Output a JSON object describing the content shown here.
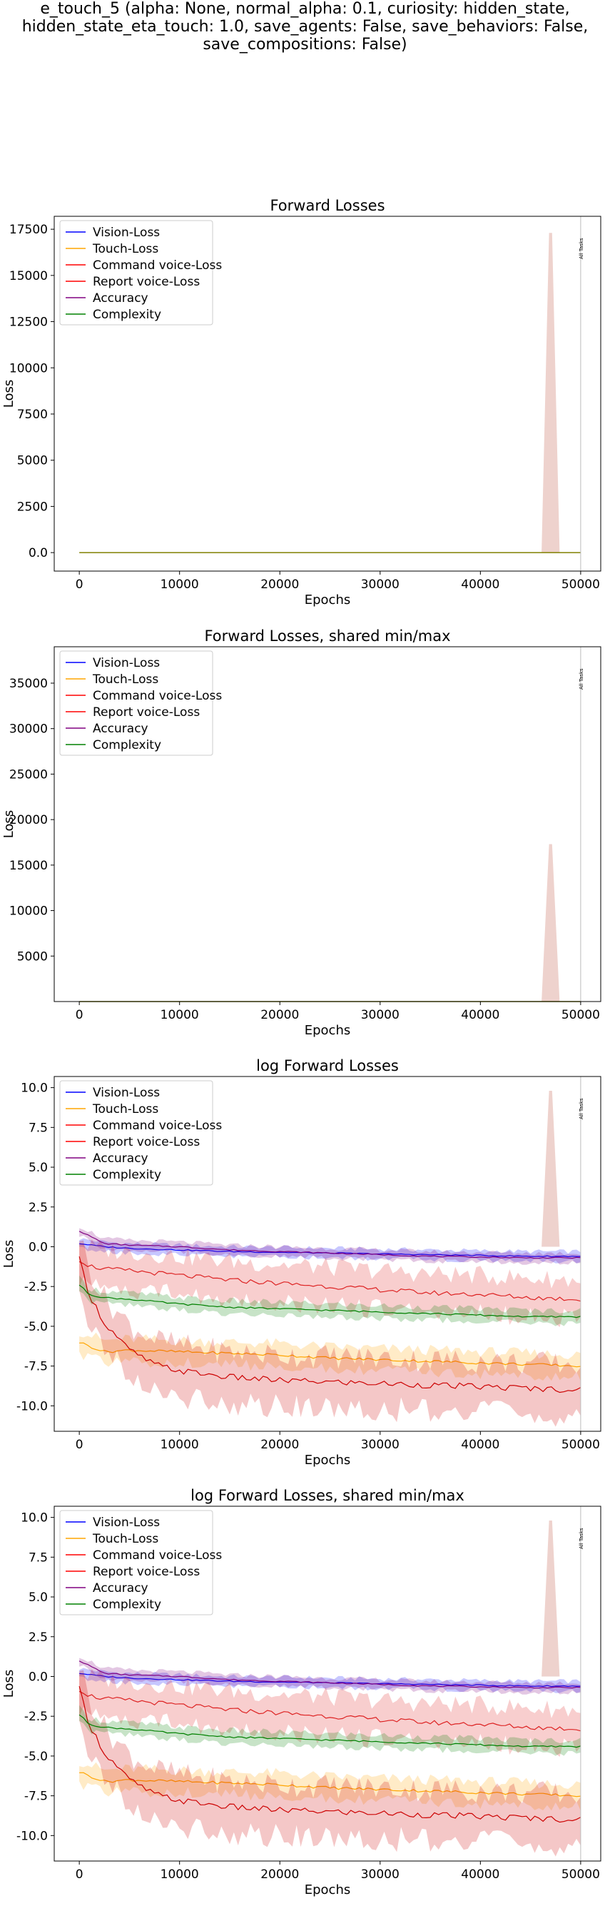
{
  "figure_title": "e_touch_5 (alpha: None, normal_alpha: 0.1, curiosity: hidden_state,\nhidden_state_eta_touch: 1.0, save_agents: False, save_behaviors: False,\nsave_compositions: False)",
  "legend": [
    {
      "name": "Vision-Loss",
      "color": "#0000ff"
    },
    {
      "name": "Touch-Loss",
      "color": "#ffa500"
    },
    {
      "name": "Command voice-Loss",
      "color": "#ff0000"
    },
    {
      "name": "Report voice-Loss",
      "color": "#ff0000"
    },
    {
      "name": "Accuracy",
      "color": "#800080"
    },
    {
      "name": "Complexity",
      "color": "#008000"
    }
  ],
  "marker_label": "All Tasks",
  "chart_data": [
    {
      "type": "line",
      "title": "Forward Losses",
      "xlabel": "Epochs",
      "ylabel": "Loss",
      "xlim": [
        -2500,
        52000
      ],
      "ylim": [
        -1000,
        18200
      ],
      "xticks": [
        0,
        10000,
        20000,
        30000,
        40000,
        50000
      ],
      "yticks": [
        0,
        2500,
        5000,
        7500,
        10000,
        12500,
        15000,
        17500
      ],
      "grid": false,
      "legend_position": "top-left",
      "vline_x": 50000,
      "spike": {
        "x": 47000,
        "y_max": 17300
      }
    },
    {
      "type": "line",
      "title": "Forward Losses, shared min/max",
      "xlabel": "Epochs",
      "ylabel": "Loss",
      "xlim": [
        -2500,
        52000
      ],
      "ylim": [
        0,
        39000
      ],
      "xticks": [
        0,
        10000,
        20000,
        30000,
        40000,
        50000
      ],
      "yticks": [
        5000,
        10000,
        15000,
        20000,
        25000,
        30000,
        35000
      ],
      "grid": false,
      "legend_position": "top-left",
      "vline_x": 50000,
      "spike": {
        "x": 47000,
        "y_max": 17300
      }
    },
    {
      "type": "line",
      "title": "log Forward Losses",
      "xlabel": "Epochs",
      "ylabel": "Loss",
      "xlim": [
        -2500,
        52000
      ],
      "ylim": [
        -11.6,
        10.7
      ],
      "xticks": [
        0,
        10000,
        20000,
        30000,
        40000,
        50000
      ],
      "yticks": [
        -10.0,
        -7.5,
        -5.0,
        -2.5,
        0.0,
        2.5,
        5.0,
        7.5,
        10.0
      ],
      "grid": false,
      "legend_position": "top-left",
      "vline_x": 50000,
      "spike": {
        "x": 47000,
        "y_max": 9.8
      },
      "series": [
        {
          "name": "Vision-Loss",
          "color": "#0000ff",
          "x": [
            0,
            2500,
            5000,
            10000,
            15000,
            20000,
            25000,
            30000,
            35000,
            40000,
            45000,
            50000
          ],
          "y": [
            0.2,
            0.0,
            -0.1,
            -0.2,
            -0.3,
            -0.35,
            -0.4,
            -0.45,
            -0.5,
            -0.55,
            -0.6,
            -0.6
          ],
          "band": 0.3
        },
        {
          "name": "Touch-Loss",
          "color": "#ffa500",
          "x": [
            0,
            2500,
            5000,
            10000,
            15000,
            20000,
            25000,
            30000,
            35000,
            40000,
            45000,
            50000
          ],
          "y": [
            -6.0,
            -6.6,
            -6.5,
            -6.6,
            -6.7,
            -6.8,
            -7.0,
            -7.1,
            -7.2,
            -7.3,
            -7.4,
            -7.5
          ],
          "band": 0.7
        },
        {
          "name": "Command voice-Loss",
          "color": "#dd2222",
          "x": [
            0,
            1000,
            2500,
            5000,
            10000,
            15000,
            20000,
            25000,
            30000,
            35000,
            40000,
            45000,
            50000
          ],
          "y": [
            -0.8,
            -1.2,
            -1.4,
            -1.5,
            -1.8,
            -2.1,
            -2.3,
            -2.5,
            -2.7,
            -2.9,
            -3.0,
            -3.2,
            -3.3
          ],
          "band": 1.2
        },
        {
          "name": "Report voice-Loss",
          "color": "#cc0000",
          "x": [
            0,
            1000,
            2500,
            5000,
            7500,
            10000,
            15000,
            20000,
            25000,
            30000,
            35000,
            40000,
            45000,
            50000
          ],
          "y": [
            -0.8,
            -3.0,
            -4.8,
            -6.5,
            -7.4,
            -7.8,
            -8.2,
            -8.4,
            -8.5,
            -8.6,
            -8.7,
            -8.8,
            -8.9,
            -9.0
          ],
          "band": 1.6
        },
        {
          "name": "Accuracy",
          "color": "#800080",
          "x": [
            0,
            2500,
            5000,
            10000,
            15000,
            20000,
            25000,
            30000,
            35000,
            40000,
            45000,
            50000
          ],
          "y": [
            1.0,
            0.2,
            0.1,
            0.0,
            -0.2,
            -0.3,
            -0.4,
            -0.5,
            -0.6,
            -0.65,
            -0.7,
            -0.7
          ],
          "band": 0.3
        },
        {
          "name": "Complexity",
          "color": "#008000",
          "x": [
            0,
            1000,
            2500,
            5000,
            10000,
            15000,
            20000,
            25000,
            30000,
            35000,
            40000,
            45000,
            50000
          ],
          "y": [
            -2.4,
            -3.0,
            -3.2,
            -3.3,
            -3.6,
            -3.8,
            -3.9,
            -4.0,
            -4.1,
            -4.2,
            -4.3,
            -4.4,
            -4.4
          ],
          "band": 0.4
        }
      ]
    },
    {
      "type": "line",
      "title": "log Forward Losses, shared min/max",
      "xlabel": "Epochs",
      "ylabel": "Loss",
      "xlim": [
        -2500,
        52000
      ],
      "ylim": [
        -11.6,
        10.7
      ],
      "xticks": [
        0,
        10000,
        20000,
        30000,
        40000,
        50000
      ],
      "yticks": [
        -10.0,
        -7.5,
        -5.0,
        -2.5,
        0.0,
        2.5,
        5.0,
        7.5,
        10.0
      ],
      "grid": false,
      "legend_position": "top-left",
      "vline_x": 50000,
      "spike": {
        "x": 47000,
        "y_max": 9.8
      },
      "series": [
        {
          "name": "Vision-Loss",
          "color": "#0000ff",
          "x": [
            0,
            2500,
            5000,
            10000,
            15000,
            20000,
            25000,
            30000,
            35000,
            40000,
            45000,
            50000
          ],
          "y": [
            0.2,
            0.0,
            -0.1,
            -0.2,
            -0.3,
            -0.35,
            -0.4,
            -0.45,
            -0.5,
            -0.55,
            -0.6,
            -0.6
          ],
          "band": 0.3
        },
        {
          "name": "Touch-Loss",
          "color": "#ffa500",
          "x": [
            0,
            2500,
            5000,
            10000,
            15000,
            20000,
            25000,
            30000,
            35000,
            40000,
            45000,
            50000
          ],
          "y": [
            -6.0,
            -6.6,
            -6.5,
            -6.6,
            -6.7,
            -6.8,
            -7.0,
            -7.1,
            -7.2,
            -7.3,
            -7.4,
            -7.5
          ],
          "band": 0.7
        },
        {
          "name": "Command voice-Loss",
          "color": "#dd2222",
          "x": [
            0,
            1000,
            2500,
            5000,
            10000,
            15000,
            20000,
            25000,
            30000,
            35000,
            40000,
            45000,
            50000
          ],
          "y": [
            -0.8,
            -1.2,
            -1.4,
            -1.5,
            -1.8,
            -2.1,
            -2.3,
            -2.5,
            -2.7,
            -2.9,
            -3.0,
            -3.2,
            -3.3
          ],
          "band": 1.2
        },
        {
          "name": "Report voice-Loss",
          "color": "#cc0000",
          "x": [
            0,
            1000,
            2500,
            5000,
            7500,
            10000,
            15000,
            20000,
            25000,
            30000,
            35000,
            40000,
            45000,
            50000
          ],
          "y": [
            -0.8,
            -3.0,
            -4.8,
            -6.5,
            -7.4,
            -7.8,
            -8.2,
            -8.4,
            -8.5,
            -8.6,
            -8.7,
            -8.8,
            -8.9,
            -9.0
          ],
          "band": 1.6
        },
        {
          "name": "Accuracy",
          "color": "#800080",
          "x": [
            0,
            2500,
            5000,
            10000,
            15000,
            20000,
            25000,
            30000,
            35000,
            40000,
            45000,
            50000
          ],
          "y": [
            1.0,
            0.2,
            0.1,
            0.0,
            -0.2,
            -0.3,
            -0.4,
            -0.5,
            -0.6,
            -0.65,
            -0.7,
            -0.7
          ],
          "band": 0.3
        },
        {
          "name": "Complexity",
          "color": "#008000",
          "x": [
            0,
            1000,
            2500,
            5000,
            10000,
            15000,
            20000,
            25000,
            30000,
            35000,
            40000,
            45000,
            50000
          ],
          "y": [
            -2.4,
            -3.0,
            -3.2,
            -3.3,
            -3.6,
            -3.8,
            -3.9,
            -4.0,
            -4.1,
            -4.2,
            -4.3,
            -4.4,
            -4.4
          ],
          "band": 0.4
        }
      ]
    }
  ]
}
